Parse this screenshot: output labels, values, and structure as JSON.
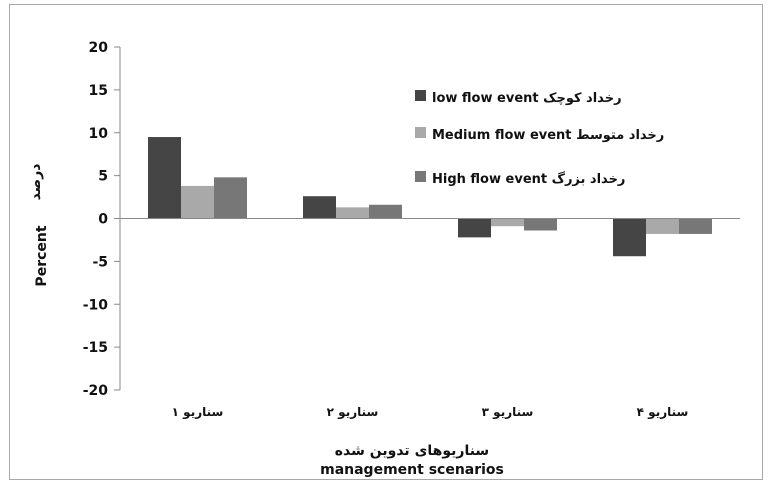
{
  "chart_data": {
    "type": "bar",
    "categories": [
      "سناریو ۱",
      "سناریو ۲",
      "سناریو ۳",
      "سناریو ۴"
    ],
    "series": [
      {
        "name": "low flow event رخداد کوچک",
        "values": [
          9.5,
          2.6,
          -2.2,
          -4.4
        ],
        "color": "#454545"
      },
      {
        "name": "Medium flow event  رخداد متوسط",
        "values": [
          3.8,
          1.3,
          -0.9,
          -1.8
        ],
        "color": "#a9a9a9"
      },
      {
        "name": "High flow event  رخداد بزرگ",
        "values": [
          4.8,
          1.6,
          -1.4,
          -1.8
        ],
        "color": "#777777"
      }
    ],
    "ylim": [
      -20,
      20
    ],
    "yticks": [
      20,
      15,
      10,
      5,
      0,
      -5,
      -10,
      -15,
      -20
    ],
    "ylabel_fa": "درصد",
    "ylabel": "Percent",
    "xlabel_fa": "سناریوهای تدوین شده",
    "xlabel": "management scenarios",
    "grid": false,
    "legend_position": "top-right"
  }
}
